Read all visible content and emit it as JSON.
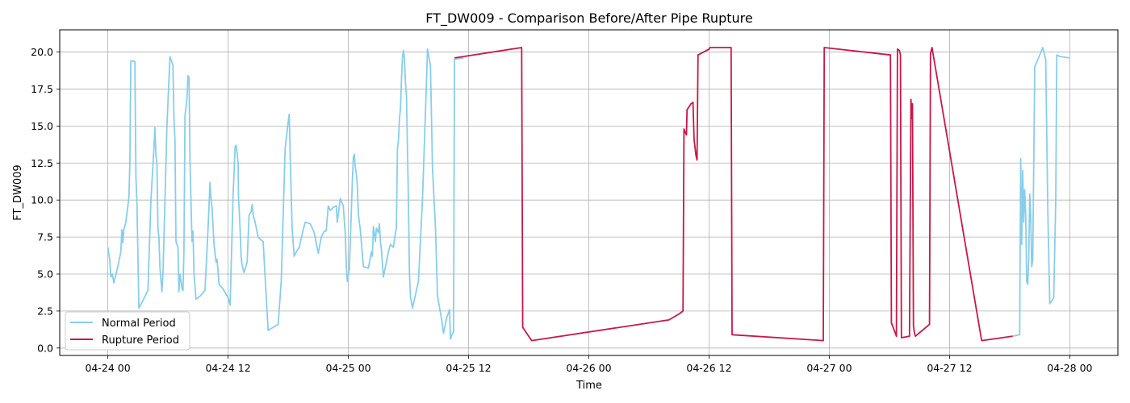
{
  "chart_data": {
    "type": "line",
    "title": "FT_DW009 - Comparison Before/After Pipe Rupture",
    "xlabel": "Time",
    "ylabel": "FT_DW009",
    "x_unit": "hours since 04-24 00",
    "xlim": [
      -4.8,
      100.8
    ],
    "ylim": [
      -0.5,
      21.5
    ],
    "grid": true,
    "legend_position": "lower-left",
    "x_ticks": [
      {
        "value": 0,
        "label": "04-24 00"
      },
      {
        "value": 12,
        "label": "04-24 12"
      },
      {
        "value": 24,
        "label": "04-25 00"
      },
      {
        "value": 36,
        "label": "04-25 12"
      },
      {
        "value": 48,
        "label": "04-26 00"
      },
      {
        "value": 60,
        "label": "04-26 12"
      },
      {
        "value": 72,
        "label": "04-27 00"
      },
      {
        "value": 84,
        "label": "04-27 12"
      },
      {
        "value": 96,
        "label": "04-28 00"
      }
    ],
    "y_ticks": [
      {
        "value": 0,
        "label": "0.0"
      },
      {
        "value": 2.5,
        "label": "2.5"
      },
      {
        "value": 5,
        "label": "5.0"
      },
      {
        "value": 7.5,
        "label": "7.5"
      },
      {
        "value": 10,
        "label": "10.0"
      },
      {
        "value": 12.5,
        "label": "12.5"
      },
      {
        "value": 15,
        "label": "15.0"
      },
      {
        "value": 17.5,
        "label": "17.5"
      },
      {
        "value": 20,
        "label": "20.0"
      }
    ],
    "series": [
      {
        "name": "Normal Period",
        "color": "#87ceeb",
        "segments": [
          [
            [
              0,
              6.8
            ],
            [
              0.2,
              5.9
            ],
            [
              0.3,
              4.8
            ],
            [
              0.45,
              5.0
            ],
            [
              0.6,
              4.4
            ],
            [
              1.0,
              5.5
            ],
            [
              1.3,
              6.5
            ],
            [
              1.4,
              8.0
            ],
            [
              1.5,
              7.1
            ],
            [
              1.6,
              8.0
            ],
            [
              1.8,
              8.5
            ],
            [
              2.0,
              9.6
            ],
            [
              2.1,
              10.2
            ],
            [
              2.2,
              12.5
            ],
            [
              2.3,
              19.4
            ],
            [
              2.5,
              19.4
            ],
            [
              2.7,
              19.35
            ],
            [
              2.8,
              11.5
            ],
            [
              2.9,
              10.0
            ],
            [
              3.1,
              2.7
            ],
            [
              3.5,
              3.2
            ],
            [
              4.0,
              3.9
            ],
            [
              4.3,
              10.0
            ],
            [
              4.6,
              13.5
            ],
            [
              4.7,
              14.9
            ],
            [
              4.8,
              13.0
            ],
            [
              4.9,
              12.5
            ],
            [
              5.0,
              8.0
            ],
            [
              5.1,
              7.5
            ],
            [
              5.2,
              5.5
            ],
            [
              5.4,
              3.8
            ],
            [
              5.5,
              5.0
            ],
            [
              5.7,
              10.0
            ],
            [
              5.9,
              15.0
            ],
            [
              6.2,
              19.7
            ],
            [
              6.5,
              19.1
            ],
            [
              6.6,
              15.5
            ],
            [
              6.7,
              14.0
            ],
            [
              6.8,
              7.2
            ],
            [
              7.0,
              6.8
            ],
            [
              7.1,
              3.8
            ],
            [
              7.2,
              5.0
            ],
            [
              7.4,
              4.0
            ],
            [
              7.5,
              3.9
            ],
            [
              7.6,
              6.6
            ],
            [
              7.7,
              15.7
            ],
            [
              7.9,
              16.9
            ],
            [
              8.0,
              18.4
            ],
            [
              8.1,
              18.3
            ],
            [
              8.2,
              12.5
            ],
            [
              8.4,
              7.2
            ],
            [
              8.5,
              7.9
            ],
            [
              8.6,
              5.0
            ],
            [
              8.8,
              3.3
            ],
            [
              9.2,
              3.5
            ],
            [
              9.7,
              3.9
            ],
            [
              10.0,
              8.0
            ],
            [
              10.2,
              11.2
            ],
            [
              10.3,
              10.0
            ],
            [
              10.4,
              9.5
            ],
            [
              10.6,
              7.0
            ],
            [
              10.8,
              5.8
            ],
            [
              10.9,
              6.0
            ],
            [
              11.1,
              4.3
            ],
            [
              11.5,
              4.0
            ],
            [
              12.0,
              3.4
            ],
            [
              12.2,
              2.9
            ],
            [
              12.5,
              10.3
            ],
            [
              12.7,
              13.6
            ],
            [
              12.8,
              13.7
            ],
            [
              12.9,
              13.2
            ],
            [
              13.0,
              12.5
            ],
            [
              13.05,
              10.0
            ],
            [
              13.1,
              9.5
            ],
            [
              13.2,
              8.0
            ],
            [
              13.3,
              6.2
            ],
            [
              13.4,
              5.6
            ],
            [
              13.6,
              5.1
            ],
            [
              13.9,
              5.8
            ],
            [
              14.1,
              9.0
            ],
            [
              14.3,
              9.2
            ],
            [
              14.4,
              9.7
            ],
            [
              14.5,
              9.0
            ],
            [
              14.7,
              8.5
            ],
            [
              15.0,
              7.5
            ],
            [
              15.3,
              7.3
            ],
            [
              15.5,
              7.2
            ],
            [
              16.0,
              1.2
            ],
            [
              16.5,
              1.4
            ],
            [
              17.0,
              1.6
            ],
            [
              17.3,
              4.5
            ],
            [
              17.7,
              13.5
            ],
            [
              18.0,
              15.3
            ],
            [
              18.1,
              15.8
            ],
            [
              18.2,
              13.0
            ],
            [
              18.4,
              8.0
            ],
            [
              18.6,
              6.2
            ],
            [
              18.8,
              6.5
            ],
            [
              19.1,
              6.8
            ],
            [
              19.5,
              8.0
            ],
            [
              19.7,
              8.5
            ],
            [
              20.2,
              8.4
            ],
            [
              20.6,
              7.8
            ],
            [
              21.0,
              6.4
            ],
            [
              21.3,
              7.5
            ],
            [
              21.6,
              7.9
            ],
            [
              21.8,
              7.9
            ],
            [
              22.0,
              9.6
            ],
            [
              22.2,
              9.3
            ],
            [
              22.5,
              9.5
            ],
            [
              22.8,
              9.6
            ],
            [
              22.9,
              8.5
            ],
            [
              23.2,
              10.1
            ],
            [
              23.5,
              9.6
            ],
            [
              23.7,
              7.7
            ],
            [
              23.8,
              5.5
            ],
            [
              23.9,
              4.5
            ],
            [
              24.1,
              5.3
            ],
            [
              24.4,
              11.2
            ],
            [
              24.5,
              12.9
            ],
            [
              24.6,
              13.1
            ],
            [
              24.7,
              12.2
            ],
            [
              24.8,
              11.8
            ],
            [
              24.9,
              11.0
            ],
            [
              25.0,
              9.0
            ],
            [
              25.1,
              8.5
            ],
            [
              25.2,
              8.0
            ],
            [
              25.5,
              5.5
            ],
            [
              26.0,
              5.4
            ],
            [
              26.3,
              6.5
            ],
            [
              26.4,
              6.2
            ],
            [
              26.5,
              8.2
            ],
            [
              26.7,
              7.2
            ],
            [
              26.8,
              8.1
            ],
            [
              27.0,
              7.8
            ],
            [
              27.1,
              8.4
            ],
            [
              27.2,
              7.2
            ],
            [
              27.3,
              6.7
            ],
            [
              27.4,
              5.7
            ],
            [
              27.5,
              4.8
            ],
            [
              28.0,
              6.5
            ],
            [
              28.2,
              7.0
            ],
            [
              28.5,
              6.8
            ],
            [
              28.7,
              7.8
            ],
            [
              28.8,
              8.1
            ],
            [
              28.9,
              13.5
            ],
            [
              29.0,
              14.0
            ],
            [
              29.1,
              15.5
            ],
            [
              29.2,
              16.1
            ],
            [
              29.3,
              18.0
            ],
            [
              29.4,
              19.6
            ],
            [
              29.5,
              20.1
            ],
            [
              29.6,
              19.5
            ],
            [
              29.7,
              18.0
            ],
            [
              29.8,
              17.0
            ],
            [
              30.0,
              10.0
            ],
            [
              30.1,
              5.0
            ],
            [
              30.2,
              3.5
            ],
            [
              30.4,
              2.7
            ],
            [
              31.0,
              4.5
            ],
            [
              31.4,
              10.0
            ],
            [
              31.8,
              18.0
            ],
            [
              31.9,
              20.2
            ],
            [
              32.2,
              19.1
            ],
            [
              32.4,
              12.2
            ],
            [
              32.7,
              8.0
            ],
            [
              32.9,
              3.5
            ],
            [
              33.3,
              2.0
            ],
            [
              33.5,
              1.0
            ],
            [
              33.8,
              2.0
            ],
            [
              34.1,
              2.6
            ],
            [
              34.2,
              0.6
            ],
            [
              34.4,
              1.0
            ],
            [
              34.5,
              1.1
            ],
            [
              34.6,
              19.5
            ],
            [
              35.0,
              19.55
            ],
            [
              35.5,
              19.6
            ]
          ],
          [
            [
              90.3,
              0.8
            ],
            [
              91.0,
              0.9
            ],
            [
              91.1,
              12.8
            ],
            [
              91.2,
              7.0
            ],
            [
              91.3,
              12.0
            ],
            [
              91.4,
              8.5
            ],
            [
              91.5,
              10.7
            ],
            [
              91.6,
              9.0
            ],
            [
              91.7,
              4.5
            ],
            [
              91.8,
              4.3
            ],
            [
              91.9,
              6.0
            ],
            [
              92.0,
              10.4
            ],
            [
              92.1,
              9.0
            ],
            [
              92.2,
              5.5
            ],
            [
              92.3,
              5.9
            ],
            [
              92.5,
              19.0
            ],
            [
              93.0,
              19.8
            ],
            [
              93.3,
              20.3
            ],
            [
              93.6,
              19.5
            ],
            [
              93.8,
              9.5
            ],
            [
              94.0,
              3.0
            ],
            [
              94.2,
              3.2
            ],
            [
              94.4,
              3.4
            ],
            [
              94.6,
              10.0
            ],
            [
              94.7,
              19.8
            ],
            [
              95.0,
              19.7
            ],
            [
              96.0,
              19.6
            ]
          ]
        ]
      },
      {
        "name": "Rupture Period",
        "color": "#c8174a",
        "segments": [
          [
            [
              34.6,
              19.6
            ],
            [
              41.3,
              20.3
            ],
            [
              41.4,
              1.4
            ],
            [
              42.3,
              0.5
            ],
            [
              56.0,
              1.9
            ],
            [
              57.0,
              2.3
            ],
            [
              57.4,
              2.5
            ],
            [
              57.5,
              14.8
            ],
            [
              57.6,
              14.6
            ],
            [
              57.75,
              14.4
            ],
            [
              57.8,
              16.1
            ],
            [
              58.2,
              16.5
            ],
            [
              58.4,
              16.6
            ],
            [
              58.5,
              14.1
            ],
            [
              58.7,
              13.0
            ],
            [
              58.8,
              12.7
            ],
            [
              58.9,
              19.8
            ],
            [
              60.0,
              20.2
            ],
            [
              60.1,
              20.3
            ],
            [
              62.2,
              20.3
            ],
            [
              62.3,
              0.9
            ],
            [
              71.4,
              0.5
            ],
            [
              71.5,
              20.3
            ],
            [
              78.1,
              19.8
            ],
            [
              78.2,
              1.7
            ],
            [
              78.7,
              0.8
            ],
            [
              78.8,
              20.2
            ],
            [
              79.0,
              20.1
            ],
            [
              79.1,
              19.8
            ],
            [
              79.2,
              0.7
            ],
            [
              80.0,
              0.8
            ],
            [
              80.15,
              16.8
            ],
            [
              80.25,
              15.5
            ],
            [
              80.3,
              16.5
            ],
            [
              80.4,
              1.5
            ],
            [
              80.5,
              1.0
            ],
            [
              80.6,
              0.8
            ],
            [
              82.0,
              1.6
            ],
            [
              82.1,
              19.9
            ],
            [
              82.25,
              20.3
            ],
            [
              87.2,
              0.5
            ],
            [
              90.3,
              0.8
            ]
          ]
        ]
      }
    ]
  }
}
